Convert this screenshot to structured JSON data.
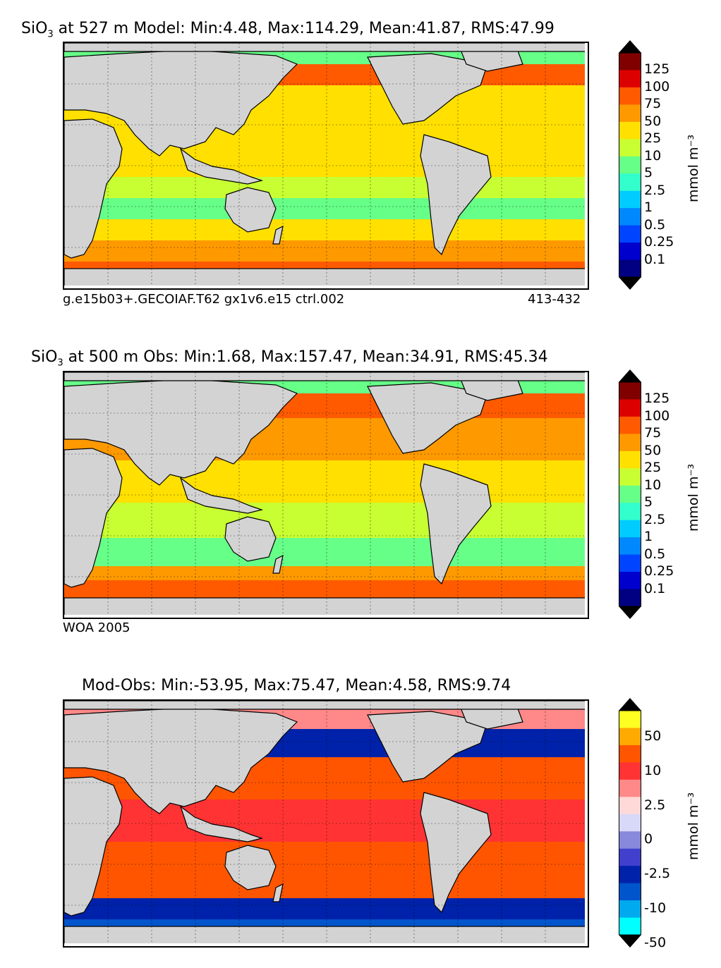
{
  "panels": [
    {
      "title_pre": "SiO",
      "title_sub": "3",
      "title_post": " at 527 m Model: Min:4.48, Max:114.29, Mean:41.87, RMS:47.99",
      "left_caption": "g.e15b03+.GECOIAF.T62 gx1v6.e15 ctrl.002",
      "right_caption": "413-432",
      "colorbar": {
        "unit": "mmol m⁻³",
        "labels": [
          "125",
          "100",
          "75",
          "50",
          "25",
          "10",
          "5",
          "2.5",
          "1",
          "0.5",
          "0.25",
          "0.1"
        ],
        "colors": [
          "#800000",
          "#dd0000",
          "#ff5a00",
          "#ff9900",
          "#ffe000",
          "#c8ff32",
          "#66ff88",
          "#33ffcc",
          "#00ccff",
          "#0088ff",
          "#0044ff",
          "#0000cc",
          "#000080"
        ]
      }
    },
    {
      "title_pre": "SiO",
      "title_sub": "3",
      "title_post": " at 500 m Obs: Min:1.68, Max:157.47, Mean:34.91, RMS:45.34",
      "left_caption": "WOA 2005",
      "right_caption": "",
      "colorbar": {
        "unit": "mmol m⁻³",
        "labels": [
          "125",
          "100",
          "75",
          "50",
          "25",
          "10",
          "5",
          "2.5",
          "1",
          "0.5",
          "0.25",
          "0.1"
        ],
        "colors": [
          "#800000",
          "#dd0000",
          "#ff5a00",
          "#ff9900",
          "#ffe000",
          "#c8ff32",
          "#66ff88",
          "#33ffcc",
          "#00ccff",
          "#0088ff",
          "#0044ff",
          "#0000cc",
          "#000080"
        ]
      }
    },
    {
      "title_pre": "Mod-Obs: Min:-53.95, Max:75.47, Mean:4.58, RMS:9.74",
      "title_sub": "",
      "title_post": "",
      "left_caption": "",
      "right_caption": "",
      "colorbar": {
        "unit": "mmol m⁻³",
        "labels": [
          "50",
          "10",
          "2.5",
          "0",
          "-2.5",
          "-10",
          "-50"
        ],
        "colors": [
          "#ffff22",
          "#ffaa00",
          "#ff5500",
          "#ff3333",
          "#ff8888",
          "#ffd8d8",
          "#d8d8f8",
          "#8888dd",
          "#4040cc",
          "#0022aa",
          "#0055cc",
          "#00aaee",
          "#00ffff"
        ]
      }
    }
  ]
}
